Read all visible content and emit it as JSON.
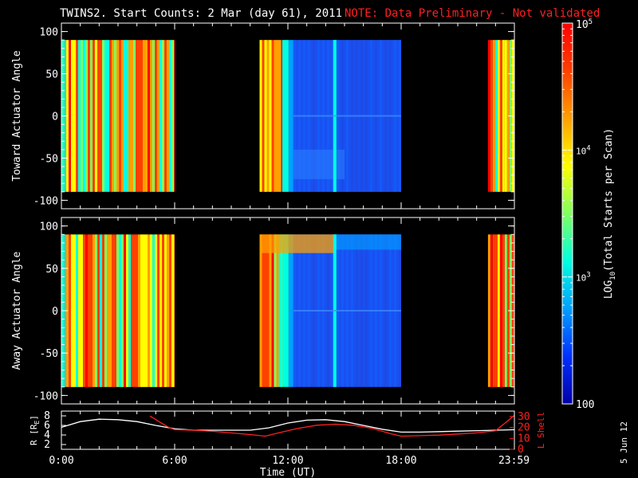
{
  "title": {
    "main": "TWINS2. Start Counts:  2 Mar (day  61), 2011",
    "note": "NOTE: Data Preliminary - Not validated"
  },
  "chart_data": [
    {
      "type": "heatmap",
      "name": "toward",
      "ylabel": "Toward Actuator Angle",
      "ylim": [
        -110,
        110
      ],
      "yticks": [
        "100",
        "50",
        "0",
        "-50",
        "-100"
      ],
      "ytick_values": [
        100,
        50,
        0,
        -50,
        -100
      ],
      "xlim_hours": [
        0,
        24
      ],
      "data_extent_deg": [
        -90,
        90
      ],
      "segments": [
        {
          "start_hour": 0.0,
          "end_hour": 6.0,
          "level": "high"
        },
        {
          "start_hour": 10.5,
          "end_hour": 18.0,
          "level": "mixed"
        },
        {
          "start_hour": 22.6,
          "end_hour": 24.0,
          "level": "high"
        }
      ]
    },
    {
      "type": "heatmap",
      "name": "away",
      "ylabel": "Away Actuator Angle",
      "ylim": [
        -110,
        110
      ],
      "yticks": [
        "100",
        "50",
        "0",
        "-50",
        "-100"
      ],
      "ytick_values": [
        100,
        50,
        0,
        -50,
        -100
      ],
      "xlim_hours": [
        0,
        24
      ],
      "data_extent_deg": [
        -90,
        90
      ],
      "segments": [
        {
          "start_hour": 0.0,
          "end_hour": 6.0,
          "level": "high"
        },
        {
          "start_hour": 10.5,
          "end_hour": 18.0,
          "level": "mixed"
        },
        {
          "start_hour": 22.6,
          "end_hour": 24.0,
          "level": "high"
        }
      ]
    },
    {
      "type": "line",
      "name": "orbit",
      "ylabel_left": "R [R",
      "ylabel_left_sub": "E",
      "ylabel_left_end": "]",
      "ylabel_right": "L Shell",
      "ylim_left": [
        1,
        9
      ],
      "ylim_right": [
        0,
        35
      ],
      "yticks_left": [
        "8",
        "6",
        "4",
        "2"
      ],
      "ytick_values_left": [
        8,
        6,
        4,
        2
      ],
      "yticks_right": [
        "30",
        "20",
        "10",
        "0"
      ],
      "ytick_values_right": [
        30,
        20,
        10,
        0
      ],
      "xlabel": "Time (UT)",
      "xticks": [
        "0:00",
        "6:00",
        "12:00",
        "18:00",
        "23:59"
      ],
      "xtick_hours": [
        0,
        6,
        12,
        18,
        23.98
      ],
      "series": [
        {
          "axis": "left",
          "color": "#ffffff",
          "x": [
            0,
            1,
            2,
            3,
            4,
            5,
            6,
            7,
            8,
            9,
            10,
            11,
            12,
            13,
            14,
            15,
            16,
            17,
            18,
            19,
            20,
            21,
            22,
            23,
            24
          ],
          "y": [
            5.6,
            6.8,
            7.3,
            7.2,
            6.8,
            6.0,
            5.3,
            5.0,
            5.0,
            5.0,
            5.0,
            5.5,
            6.5,
            7.1,
            7.2,
            6.8,
            6.0,
            5.2,
            4.6,
            4.6,
            4.7,
            4.8,
            4.9,
            5.0,
            5.1
          ]
        },
        {
          "axis": "right",
          "color": "#ff2020",
          "x": [
            4.7,
            5.2,
            5.7,
            6.0,
            7,
            8,
            9,
            10,
            10.8,
            11.5,
            12.5,
            13.5,
            14.5,
            15.5,
            16.5,
            17.5,
            18,
            19,
            20,
            21,
            22,
            23,
            24
          ],
          "y": [
            30.5,
            25,
            20,
            18,
            17.5,
            16.5,
            15,
            13.5,
            12,
            15,
            19,
            22,
            23,
            22,
            19,
            14,
            12,
            12.5,
            13,
            14,
            15,
            17,
            31
          ]
        }
      ]
    }
  ],
  "colorbar": {
    "label": "LOG",
    "label_sub": "10",
    "label_end": "(Total Starts per Scan)",
    "ticks": [
      {
        "text": "100",
        "kind": "big"
      },
      {
        "text": "10",
        "sup": "3",
        "kind": "small"
      },
      {
        "text": "10",
        "sup": "4",
        "kind": "small"
      },
      {
        "text": "10",
        "sup": "5",
        "kind": "big"
      }
    ],
    "tick_values": [
      100,
      1000,
      10000,
      100000
    ],
    "range": [
      100,
      100000
    ],
    "colors": [
      "#0000a8",
      "#0030ff",
      "#00a0ff",
      "#00ffe0",
      "#80ff60",
      "#ffff00",
      "#ffa000",
      "#ff4000",
      "#ff0000"
    ]
  },
  "side_label": "5 Jun 12"
}
